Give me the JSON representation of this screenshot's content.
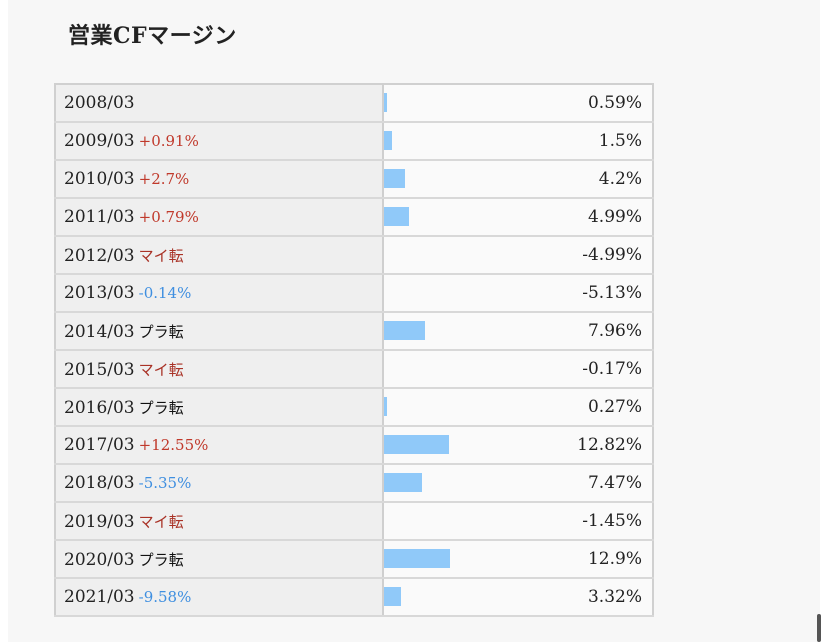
{
  "title": "営業CFマージン",
  "colors": {
    "bar": "#90c9f9",
    "plus": "#c0392b",
    "minus": "#3f8fe0"
  },
  "chart_data": {
    "type": "bar",
    "title": "営業CFマージン",
    "categories": [
      "2008/03",
      "2009/03",
      "2010/03",
      "2011/03",
      "2012/03",
      "2013/03",
      "2014/03",
      "2015/03",
      "2016/03",
      "2017/03",
      "2018/03",
      "2019/03",
      "2020/03",
      "2021/03"
    ],
    "values": [
      0.59,
      1.5,
      4.2,
      4.99,
      -4.99,
      -5.13,
      7.96,
      -0.17,
      0.27,
      12.82,
      7.47,
      -1.45,
      12.9,
      3.32
    ],
    "value_labels": [
      "0.59%",
      "1.5%",
      "4.2%",
      "4.99%",
      "-4.99%",
      "-5.13%",
      "7.96%",
      "-0.17%",
      "0.27%",
      "12.82%",
      "7.47%",
      "-1.45%",
      "12.9%",
      "3.32%"
    ],
    "changes": [
      "",
      "+0.91%",
      "+2.7%",
      "+0.79%",
      "マイ転",
      "-0.14%",
      "プラ転",
      "マイ転",
      "プラ転",
      "+12.55%",
      "-5.35%",
      "マイ転",
      "プラ転",
      "-9.58%"
    ],
    "change_types": [
      "",
      "plus",
      "plus",
      "plus",
      "mai",
      "minus",
      "pura",
      "mai",
      "pura",
      "plus",
      "minus",
      "mai",
      "pura",
      "minus"
    ],
    "ylim": [
      0,
      29
    ]
  }
}
